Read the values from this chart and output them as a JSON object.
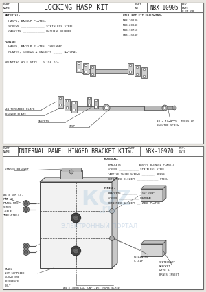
{
  "bg_color": "#e8e5e0",
  "border_color": "#666666",
  "line_color": "#444444",
  "text_color": "#222222",
  "white": "#ffffff",
  "title1": "LOCKING HASP KIT",
  "part_no1": "NBX-10905",
  "rev_date1": "8-27-08",
  "title2": "INTERNAL PANEL HINGED BRACKET KIT",
  "part_no2": "NBX-10970",
  "mat1": [
    "MATERIAL:",
    "  HASPS, BACKUP PLATES,",
    "  SCREWS _____________ STAINLESS STEEL",
    "  GASKETS ____________ NATURAL RUBBER",
    "",
    "FINISH:",
    "  HASPS, BACKUP PLATES, THREADED",
    "  PLATES, SCREWS & GASKETS _____ NATURAL",
    "",
    "MOUNTING HOLE SIZE:  0.156 DIA."
  ],
  "will_not_fit": [
    "WILL NOT FIT FOLLOWING:",
    "NBB-10240",
    "NBB-20040",
    "NBB-10760",
    "NBB-15240"
  ],
  "mat2": [
    "MATERIAL:",
    "  BRACKETS _________ ABS/PC BLENDED PLASTIC",
    "  SCREWS ____________ STAINLESS STEEL",
    "  CAPTIVE THUMB SCREWS ________ BRASS",
    "  RETAINING C-CLIPS _____________ STEEL",
    "",
    "FINISH:",
    "  BRACKETS _________ LIGHT GRAY",
    "  SCREWS ____________ NATURAL",
    "  RETAINING C-CLIPS __ ZINC PLATED"
  ]
}
